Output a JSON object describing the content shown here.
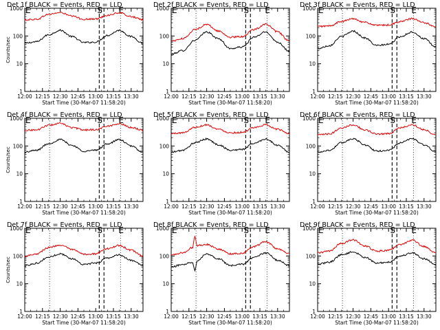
{
  "figure": {
    "colors": {
      "events": "#000000",
      "lld": "#e00000",
      "axes": "#000000",
      "background": "#ffffff"
    }
  },
  "chart_data": [
    {
      "type": "line",
      "title": "Det 1f BLACK = Events, RED = LLD",
      "xlabel": "Start Time (30-Mar-07 11:58:20)",
      "ylabel": "Counts/sec",
      "x_tick_labels": [
        "12:00",
        "12:15",
        "12:30",
        "12:45",
        "13:00",
        "13:15",
        "13:30"
      ],
      "xlim": [
        0,
        100
      ],
      "y_scale": "log",
      "ylim": [
        1,
        1000
      ],
      "y_tick_labels": [
        "1",
        "10",
        "100",
        "1000"
      ],
      "x_units": "minutes after 12:00",
      "vertical_markers": [
        {
          "label": "E",
          "x": 0,
          "style": "dotted"
        },
        {
          "label": "",
          "x": 21,
          "style": "dotted"
        },
        {
          "label": "S",
          "x": 63,
          "style": "dashed"
        },
        {
          "label": "",
          "x": 67,
          "style": "dashed"
        },
        {
          "label": "E",
          "x": 81,
          "style": "dotted"
        }
      ],
      "series": [
        {
          "name": "Events",
          "color": "black",
          "x": [
            0,
            10,
            20,
            30,
            40,
            50,
            60,
            70,
            80,
            90,
            100
          ],
          "y": [
            55,
            62,
            110,
            160,
            95,
            58,
            60,
            105,
            160,
            95,
            55
          ]
        },
        {
          "name": "LLD",
          "color": "red",
          "x": [
            0,
            10,
            20,
            30,
            40,
            50,
            60,
            70,
            80,
            90,
            100
          ],
          "y": [
            380,
            400,
            600,
            700,
            520,
            400,
            410,
            560,
            680,
            500,
            380
          ]
        }
      ]
    },
    {
      "type": "line",
      "title": "Det 2f BLACK = Events, RED = LLD",
      "xlabel": "Start Time (30-Mar-07 11:58:20)",
      "ylabel": "",
      "x_tick_labels": [
        "12:00",
        "12:15",
        "12:30",
        "12:45",
        "13:00",
        "13:15",
        "13:30"
      ],
      "xlim": [
        0,
        100
      ],
      "y_scale": "log",
      "ylim": [
        1,
        1000
      ],
      "y_tick_labels": [
        "1",
        "10",
        "100",
        "1000"
      ],
      "x_units": "minutes after 12:00",
      "vertical_markers": [
        {
          "label": "E",
          "x": 0,
          "style": "dotted"
        },
        {
          "label": "",
          "x": 21,
          "style": "dotted"
        },
        {
          "label": "S",
          "x": 63,
          "style": "dashed"
        },
        {
          "label": "",
          "x": 67,
          "style": "dashed"
        },
        {
          "label": "E",
          "x": 81,
          "style": "dotted"
        }
      ],
      "series": [
        {
          "name": "Events",
          "color": "black",
          "x": [
            0,
            10,
            20,
            30,
            40,
            50,
            60,
            70,
            80,
            90,
            100
          ],
          "y": [
            22,
            30,
            70,
            140,
            80,
            35,
            40,
            90,
            140,
            60,
            28
          ]
        },
        {
          "name": "LLD",
          "color": "red",
          "x": [
            0,
            10,
            20,
            30,
            40,
            50,
            60,
            70,
            80,
            90,
            100
          ],
          "y": [
            65,
            80,
            170,
            260,
            150,
            90,
            95,
            170,
            270,
            140,
            65
          ]
        }
      ]
    },
    {
      "type": "line",
      "title": "Det 3f BLACK = Events, RED = LLD",
      "xlabel": "Start Time (30-Mar-07 11:58:20)",
      "ylabel": "",
      "x_tick_labels": [
        "12:00",
        "12:15",
        "12:30",
        "12:45",
        "13:00",
        "13:15",
        "13:30"
      ],
      "xlim": [
        0,
        100
      ],
      "y_scale": "log",
      "ylim": [
        1,
        1000
      ],
      "y_tick_labels": [
        "1",
        "10",
        "100",
        "1000"
      ],
      "x_units": "minutes after 12:00",
      "vertical_markers": [
        {
          "label": "E",
          "x": 0,
          "style": "dotted"
        },
        {
          "label": "",
          "x": 21,
          "style": "dotted"
        },
        {
          "label": "S",
          "x": 63,
          "style": "dashed"
        },
        {
          "label": "",
          "x": 67,
          "style": "dashed"
        },
        {
          "label": "E",
          "x": 81,
          "style": "dotted"
        }
      ],
      "series": [
        {
          "name": "Events",
          "color": "black",
          "x": [
            0,
            10,
            20,
            30,
            40,
            50,
            60,
            70,
            80,
            90,
            100
          ],
          "y": [
            35,
            45,
            95,
            150,
            85,
            45,
            50,
            95,
            140,
            80,
            40
          ]
        },
        {
          "name": "LLD",
          "color": "red",
          "x": [
            0,
            10,
            20,
            30,
            40,
            50,
            60,
            70,
            80,
            90,
            100
          ],
          "y": [
            220,
            230,
            330,
            420,
            310,
            240,
            250,
            330,
            420,
            300,
            220
          ]
        }
      ]
    },
    {
      "type": "line",
      "title": "Det 4f BLACK = Events, RED = LLD",
      "xlabel": "Start Time (30-Mar-07 11:58:20)",
      "ylabel": "Counts/sec",
      "x_tick_labels": [
        "12:00",
        "12:15",
        "12:30",
        "12:45",
        "13:00",
        "13:15",
        "13:30"
      ],
      "xlim": [
        0,
        100
      ],
      "y_scale": "log",
      "ylim": [
        1,
        1000
      ],
      "y_tick_labels": [
        "1",
        "10",
        "100",
        "1000"
      ],
      "x_units": "minutes after 12:00",
      "vertical_markers": [
        {
          "label": "E",
          "x": 0,
          "style": "dotted"
        },
        {
          "label": "",
          "x": 21,
          "style": "dotted"
        },
        {
          "label": "S",
          "x": 63,
          "style": "dashed"
        },
        {
          "label": "",
          "x": 67,
          "style": "dashed"
        },
        {
          "label": "E",
          "x": 81,
          "style": "dotted"
        }
      ],
      "series": [
        {
          "name": "Events",
          "color": "black",
          "x": [
            0,
            10,
            20,
            30,
            40,
            50,
            60,
            70,
            80,
            90,
            100
          ],
          "y": [
            60,
            70,
            120,
            170,
            105,
            65,
            70,
            120,
            170,
            100,
            60
          ]
        },
        {
          "name": "LLD",
          "color": "red",
          "x": [
            0,
            10,
            20,
            30,
            40,
            50,
            60,
            70,
            80,
            90,
            100
          ],
          "y": [
            370,
            380,
            560,
            650,
            460,
            380,
            390,
            520,
            640,
            470,
            370
          ]
        }
      ]
    },
    {
      "type": "line",
      "title": "Det 5f BLACK = Events, RED = LLD",
      "xlabel": "Start Time (30-Mar-07 11:58:20)",
      "ylabel": "",
      "x_tick_labels": [
        "12:00",
        "12:15",
        "12:30",
        "12:45",
        "13:00",
        "13:15",
        "13:30"
      ],
      "xlim": [
        0,
        100
      ],
      "y_scale": "log",
      "ylim": [
        1,
        1000
      ],
      "y_tick_labels": [
        "1",
        "10",
        "100",
        "1000"
      ],
      "x_units": "minutes after 12:00",
      "vertical_markers": [
        {
          "label": "E",
          "x": 0,
          "style": "dotted"
        },
        {
          "label": "",
          "x": 21,
          "style": "dotted"
        },
        {
          "label": "S",
          "x": 63,
          "style": "dashed"
        },
        {
          "label": "",
          "x": 67,
          "style": "dashed"
        },
        {
          "label": "E",
          "x": 81,
          "style": "dotted"
        }
      ],
      "series": [
        {
          "name": "Events",
          "color": "black",
          "x": [
            0,
            10,
            20,
            30,
            40,
            50,
            60,
            70,
            80,
            90,
            100
          ],
          "y": [
            60,
            70,
            130,
            180,
            110,
            70,
            75,
            125,
            180,
            105,
            60
          ]
        },
        {
          "name": "LLD",
          "color": "red",
          "x": [
            0,
            10,
            20,
            30,
            40,
            50,
            60,
            70,
            80,
            90,
            100
          ],
          "y": [
            280,
            300,
            470,
            580,
            400,
            300,
            310,
            450,
            580,
            400,
            280
          ]
        }
      ]
    },
    {
      "type": "line",
      "title": "Det 6f BLACK = Events, RED = LLD",
      "xlabel": "Start Time (30-Mar-07 11:58:20)",
      "ylabel": "",
      "x_tick_labels": [
        "12:00",
        "12:15",
        "12:30",
        "12:45",
        "13:00",
        "13:15",
        "13:30"
      ],
      "xlim": [
        0,
        100
      ],
      "y_scale": "log",
      "ylim": [
        1,
        1000
      ],
      "y_tick_labels": [
        "1",
        "10",
        "100",
        "1000"
      ],
      "x_units": "minutes after 12:00",
      "vertical_markers": [
        {
          "label": "E",
          "x": 0,
          "style": "dotted"
        },
        {
          "label": "",
          "x": 21,
          "style": "dotted"
        },
        {
          "label": "S",
          "x": 63,
          "style": "dashed"
        },
        {
          "label": "",
          "x": 67,
          "style": "dashed"
        },
        {
          "label": "E",
          "x": 81,
          "style": "dotted"
        }
      ],
      "series": [
        {
          "name": "Events",
          "color": "black",
          "x": [
            0,
            10,
            20,
            30,
            40,
            50,
            60,
            70,
            80,
            90,
            100
          ],
          "y": [
            60,
            70,
            130,
            185,
            110,
            65,
            70,
            130,
            185,
            110,
            60
          ]
        },
        {
          "name": "LLD",
          "color": "red",
          "x": [
            0,
            10,
            20,
            30,
            40,
            50,
            60,
            70,
            80,
            90,
            100
          ],
          "y": [
            250,
            270,
            450,
            580,
            380,
            270,
            280,
            450,
            580,
            390,
            250
          ]
        }
      ]
    },
    {
      "type": "line",
      "title": "Det 7f BLACK = Events, RED = LLD",
      "xlabel": "Start Time (30-Mar-07 11:58:20)",
      "ylabel": "Counts/sec",
      "x_tick_labels": [
        "12:00",
        "12:15",
        "12:30",
        "12:45",
        "13:00",
        "13:15",
        "13:30"
      ],
      "xlim": [
        0,
        100
      ],
      "y_scale": "log",
      "ylim": [
        1,
        1000
      ],
      "y_tick_labels": [
        "1",
        "10",
        "100",
        "1000"
      ],
      "x_units": "minutes after 12:00",
      "vertical_markers": [
        {
          "label": "E",
          "x": 0,
          "style": "dotted"
        },
        {
          "label": "",
          "x": 21,
          "style": "dotted"
        },
        {
          "label": "S",
          "x": 63,
          "style": "dashed"
        },
        {
          "label": "",
          "x": 67,
          "style": "dashed"
        },
        {
          "label": "E",
          "x": 81,
          "style": "dotted"
        }
      ],
      "series": [
        {
          "name": "Events",
          "color": "black",
          "x": [
            0,
            10,
            20,
            30,
            40,
            50,
            60,
            70,
            80,
            90,
            100
          ],
          "y": [
            45,
            55,
            90,
            120,
            80,
            50,
            55,
            85,
            110,
            70,
            45
          ]
        },
        {
          "name": "LLD",
          "color": "red",
          "x": [
            0,
            10,
            20,
            30,
            40,
            50,
            60,
            70,
            80,
            90,
            100
          ],
          "y": [
            100,
            120,
            200,
            250,
            170,
            115,
            120,
            185,
            240,
            160,
            100
          ]
        }
      ]
    },
    {
      "type": "line",
      "title": "Det 8f BLACK = Events, RED = LLD",
      "xlabel": "Start Time (30-Mar-07 11:58:20)",
      "ylabel": "",
      "x_tick_labels": [
        "12:00",
        "12:15",
        "12:30",
        "12:45",
        "13:00",
        "13:15",
        "13:30"
      ],
      "xlim": [
        0,
        100
      ],
      "y_scale": "log",
      "ylim": [
        1,
        1000
      ],
      "y_tick_labels": [
        "1",
        "10",
        "100",
        "1000"
      ],
      "x_units": "minutes after 12:00",
      "vertical_markers": [
        {
          "label": "E",
          "x": 0,
          "style": "dotted"
        },
        {
          "label": "",
          "x": 21,
          "style": "dotted"
        },
        {
          "label": "S",
          "x": 63,
          "style": "dashed"
        },
        {
          "label": "",
          "x": 67,
          "style": "dashed"
        },
        {
          "label": "E",
          "x": 81,
          "style": "dotted"
        }
      ],
      "series": [
        {
          "name": "Events",
          "color": "black",
          "x": [
            0,
            10,
            18,
            20,
            22,
            30,
            40,
            50,
            60,
            70,
            80,
            90,
            100
          ],
          "y": [
            40,
            50,
            60,
            30,
            70,
            120,
            80,
            45,
            50,
            90,
            130,
            70,
            45
          ]
        },
        {
          "name": "LLD",
          "color": "red",
          "x": [
            0,
            10,
            18,
            20,
            22,
            30,
            40,
            50,
            60,
            70,
            80,
            90,
            100
          ],
          "y": [
            110,
            130,
            200,
            500,
            240,
            260,
            180,
            120,
            125,
            220,
            330,
            180,
            120
          ]
        }
      ]
    },
    {
      "type": "line",
      "title": "Det 9f BLACK = Events, RED = LLD",
      "xlabel": "Start Time (30-Mar-07 11:58:20)",
      "ylabel": "",
      "x_tick_labels": [
        "12:00",
        "12:15",
        "12:30",
        "12:45",
        "13:00",
        "13:15",
        "13:30"
      ],
      "xlim": [
        0,
        100
      ],
      "y_scale": "log",
      "ylim": [
        1,
        1000
      ],
      "y_tick_labels": [
        "1",
        "10",
        "100",
        "1000"
      ],
      "x_units": "minutes after 12:00",
      "vertical_markers": [
        {
          "label": "E",
          "x": 0,
          "style": "dotted"
        },
        {
          "label": "",
          "x": 21,
          "style": "dotted"
        },
        {
          "label": "S",
          "x": 63,
          "style": "dashed"
        },
        {
          "label": "",
          "x": 67,
          "style": "dashed"
        },
        {
          "label": "E",
          "x": 81,
          "style": "dotted"
        }
      ],
      "series": [
        {
          "name": "Events",
          "color": "black",
          "x": [
            0,
            10,
            20,
            30,
            40,
            50,
            60,
            70,
            80,
            90,
            100
          ],
          "y": [
            50,
            60,
            110,
            140,
            90,
            55,
            60,
            100,
            130,
            80,
            50
          ]
        },
        {
          "name": "LLD",
          "color": "red",
          "x": [
            0,
            10,
            20,
            30,
            40,
            50,
            60,
            70,
            80,
            90,
            100
          ],
          "y": [
            130,
            150,
            280,
            380,
            230,
            150,
            160,
            260,
            370,
            220,
            130
          ]
        }
      ]
    }
  ]
}
